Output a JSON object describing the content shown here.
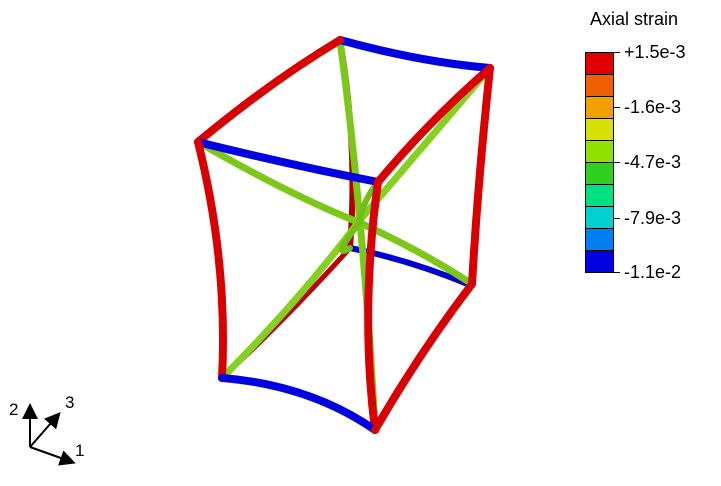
{
  "legend": {
    "title": "Axial strain",
    "colors": [
      "#e00000",
      "#f06000",
      "#f0a000",
      "#d8e000",
      "#90e000",
      "#30d020",
      "#00e080",
      "#00d0d0",
      "#0080f0",
      "#0000e0"
    ],
    "labels": [
      "+1.5e-3",
      "-1.6e-3",
      "-4.7e-3",
      "-7.9e-3",
      "-1.1e-2"
    ]
  },
  "triad": {
    "axis_2": "2",
    "axis_3": "3",
    "axis_1": "1"
  },
  "colors": {
    "tension_red": "#e00000",
    "mid_green": "#80d020",
    "compression_blue": "#0000e0"
  }
}
